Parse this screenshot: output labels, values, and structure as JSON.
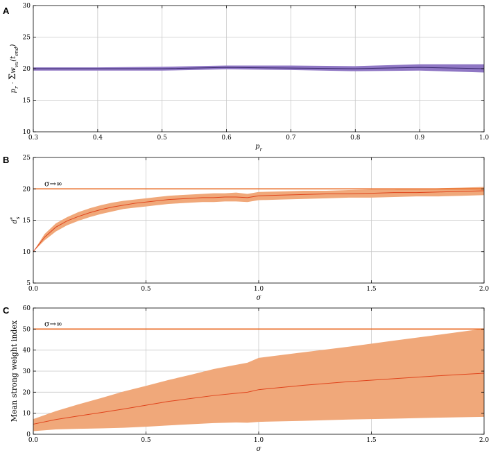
{
  "chart_data": [
    {
      "panel": "A",
      "type": "area",
      "xlabel": "p_r",
      "ylabel": "p_r · Σ_{u=1}^{d} w_{vu}(t_end)",
      "xlim": [
        0.3,
        1.0
      ],
      "ylim": [
        10,
        30
      ],
      "xticks": [
        0.3,
        0.4,
        0.5,
        0.6,
        0.7,
        0.8,
        0.9,
        1.0
      ],
      "xtick_labels": [
        "0.3",
        "0.4",
        "0.5",
        "0.6",
        "0.7",
        "0.8",
        "0.9",
        "1.0"
      ],
      "yticks": [
        10,
        15,
        20,
        25,
        30
      ],
      "ytick_labels": [
        "10",
        "15",
        "20",
        "25",
        "30"
      ],
      "grid": true,
      "series": [
        {
          "mean_color": "#3b2a6e",
          "band_color": "#8f77c4",
          "x": [
            0.3,
            0.4,
            0.5,
            0.6,
            0.7,
            0.8,
            0.9,
            1.0
          ],
          "mean": [
            20.0,
            20.0,
            20.0,
            20.2,
            20.1,
            20.0,
            20.2,
            20.0
          ],
          "lower": [
            19.7,
            19.7,
            19.7,
            19.9,
            19.8,
            19.6,
            19.7,
            19.4
          ],
          "upper": [
            20.2,
            20.2,
            20.3,
            20.5,
            20.5,
            20.4,
            20.7,
            20.7
          ]
        }
      ]
    },
    {
      "panel": "B",
      "type": "area",
      "xlabel": "σ",
      "ylabel": "d_s*",
      "xlim": [
        0.0,
        2.0
      ],
      "ylim": [
        5,
        25
      ],
      "xticks": [
        0.0,
        0.5,
        1.0,
        1.5,
        2.0
      ],
      "xtick_labels": [
        "0.0",
        "0.5",
        "1.0",
        "1.5",
        "2.0"
      ],
      "yticks": [
        5,
        10,
        15,
        20,
        25
      ],
      "ytick_labels": [
        "5",
        "10",
        "15",
        "20",
        "25"
      ],
      "grid": true,
      "hline": {
        "y": 20,
        "label": "σ→∞",
        "color": "#e8661e"
      },
      "series": [
        {
          "mean_color": "#e0431b",
          "band_color": "#f0a87a",
          "x": [
            0.0,
            0.05,
            0.1,
            0.15,
            0.2,
            0.25,
            0.3,
            0.35,
            0.4,
            0.45,
            0.5,
            0.55,
            0.6,
            0.65,
            0.7,
            0.75,
            0.8,
            0.85,
            0.9,
            0.95,
            1.0,
            1.1,
            1.2,
            1.3,
            1.4,
            1.5,
            1.6,
            1.7,
            1.8,
            1.9,
            2.0
          ],
          "mean": [
            10.0,
            12.3,
            13.9,
            14.9,
            15.6,
            16.2,
            16.7,
            17.1,
            17.4,
            17.7,
            17.9,
            18.1,
            18.3,
            18.4,
            18.5,
            18.6,
            18.6,
            18.7,
            18.7,
            18.6,
            18.9,
            19.0,
            19.1,
            19.2,
            19.2,
            19.3,
            19.4,
            19.4,
            19.5,
            19.6,
            19.7
          ],
          "lower": [
            10.0,
            11.8,
            13.2,
            14.2,
            14.9,
            15.5,
            16.0,
            16.4,
            16.8,
            17.0,
            17.2,
            17.4,
            17.6,
            17.7,
            17.8,
            17.9,
            17.9,
            18.0,
            18.0,
            17.9,
            18.2,
            18.3,
            18.4,
            18.5,
            18.6,
            18.6,
            18.7,
            18.8,
            18.8,
            18.9,
            19.0
          ],
          "upper": [
            10.0,
            12.8,
            14.5,
            15.5,
            16.3,
            16.9,
            17.4,
            17.8,
            18.1,
            18.3,
            18.5,
            18.7,
            18.9,
            19.0,
            19.1,
            19.2,
            19.3,
            19.3,
            19.4,
            19.2,
            19.5,
            19.6,
            19.7,
            19.7,
            19.8,
            19.9,
            19.9,
            20.0,
            20.1,
            20.2,
            20.3
          ]
        }
      ]
    },
    {
      "panel": "C",
      "type": "area",
      "xlabel": "σ",
      "ylabel": "Mean strong weight index",
      "xlim": [
        0.0,
        2.0
      ],
      "ylim": [
        0,
        60
      ],
      "xticks": [
        0.0,
        0.5,
        1.0,
        1.5,
        2.0
      ],
      "xtick_labels": [
        "0.0",
        "0.5",
        "1.0",
        "1.5",
        "2.0"
      ],
      "yticks": [
        0,
        10,
        20,
        30,
        40,
        50,
        60
      ],
      "ytick_labels": [
        "0",
        "10",
        "20",
        "30",
        "40",
        "50",
        "60"
      ],
      "grid": true,
      "hline": {
        "y": 50,
        "label": "σ→∞",
        "color": "#e8661e"
      },
      "series": [
        {
          "mean_color": "#e0431b",
          "band_color": "#f0a87a",
          "x": [
            0.0,
            0.1,
            0.2,
            0.3,
            0.4,
            0.5,
            0.6,
            0.7,
            0.8,
            0.9,
            0.95,
            1.0,
            1.2,
            1.4,
            1.6,
            1.8,
            2.0
          ],
          "mean": [
            4.8,
            7.0,
            8.7,
            10.3,
            12.0,
            13.8,
            15.6,
            17.0,
            18.4,
            19.5,
            20.0,
            21.2,
            23.3,
            25.0,
            26.4,
            27.8,
            29.0
          ],
          "lower": [
            1.5,
            2.3,
            2.6,
            2.8,
            3.1,
            3.6,
            4.2,
            4.8,
            5.3,
            5.6,
            5.5,
            5.9,
            6.4,
            7.0,
            7.4,
            7.9,
            8.3
          ],
          "upper": [
            7.2,
            11.0,
            14.2,
            17.2,
            20.3,
            23.0,
            25.8,
            28.3,
            31.0,
            33.0,
            34.0,
            36.3,
            39.0,
            41.6,
            44.5,
            47.3,
            50.2
          ]
        }
      ]
    }
  ]
}
